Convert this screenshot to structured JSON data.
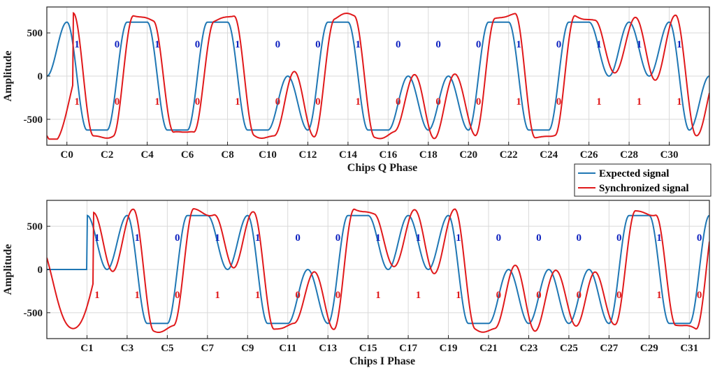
{
  "chart_data": [
    {
      "type": "line",
      "xlabel": "Chips Q Phase",
      "ylabel": "Amplitude",
      "ylim": [
        -800,
        800
      ],
      "xlim": [
        -1,
        32
      ],
      "yticks": [
        -500,
        0,
        500
      ],
      "xtick_positions": [
        0,
        2,
        4,
        6,
        8,
        10,
        12,
        14,
        16,
        18,
        20,
        22,
        24,
        26,
        28,
        30
      ],
      "xtick_labels": [
        "C0",
        "C2",
        "C4",
        "C6",
        "C8",
        "C10",
        "C12",
        "C14",
        "C16",
        "C18",
        "C20",
        "C22",
        "C24",
        "C26",
        "C28",
        "C30"
      ],
      "grid": true,
      "expected_bits": [
        "1",
        "0",
        "1",
        "0",
        "1",
        "0",
        "0",
        "1",
        "0",
        "0",
        "0",
        "1",
        "0",
        "1",
        "1",
        "1"
      ],
      "sync_bits": [
        "1",
        "0",
        "1",
        "0",
        "1",
        "0",
        "0",
        "1",
        "0",
        "0",
        "0",
        "1",
        "0",
        "1",
        "1",
        "1"
      ],
      "series": [
        {
          "name": "Expected signal",
          "color": "#1f77b4"
        },
        {
          "name": "Synchronized signal",
          "color": "#e0191b"
        }
      ]
    },
    {
      "type": "line",
      "xlabel": "Chips I Phase",
      "ylabel": "Amplitude",
      "ylim": [
        -800,
        800
      ],
      "xlim": [
        -1,
        32
      ],
      "yticks": [
        -500,
        0,
        500
      ],
      "xtick_positions": [
        1,
        3,
        5,
        7,
        9,
        11,
        13,
        15,
        17,
        19,
        21,
        23,
        25,
        27,
        29,
        31
      ],
      "xtick_labels": [
        "C1",
        "C3",
        "C5",
        "C7",
        "C9",
        "C11",
        "C13",
        "C15",
        "C17",
        "C19",
        "C21",
        "C23",
        "C25",
        "C27",
        "C29",
        "C31"
      ],
      "grid": true,
      "expected_bits": [
        "1",
        "1",
        "0",
        "1",
        "1",
        "0",
        "0",
        "1",
        "1",
        "1",
        "0",
        "0",
        "0",
        "0",
        "1",
        "0"
      ],
      "sync_bits": [
        "1",
        "1",
        "0",
        "1",
        "1",
        "0",
        "0",
        "1",
        "1",
        "1",
        "0",
        "0",
        "0",
        "0",
        "1",
        "0"
      ],
      "series": [
        {
          "name": "Expected signal",
          "color": "#1f77b4"
        },
        {
          "name": "Synchronized signal",
          "color": "#e0191b"
        }
      ]
    }
  ],
  "legend": {
    "placement": "between-panels-right",
    "entries": [
      {
        "label": "Expected signal",
        "color": "#1f77b4"
      },
      {
        "label": "Synchronized signal",
        "color": "#e0191b"
      }
    ]
  }
}
